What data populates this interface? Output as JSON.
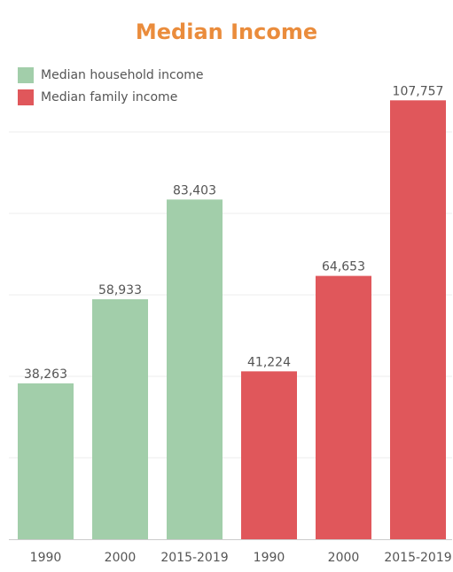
{
  "colors": {
    "title": "#ea8c3c",
    "household": "#a2ceaa",
    "family": "#e0575b",
    "text": "#555555",
    "grid": "#eeeeee",
    "baseline": "#cccccc"
  },
  "chart_data": {
    "type": "bar",
    "title": "Median Income",
    "xlabel": "",
    "ylabel": "",
    "ylim": [
      0,
      120000
    ],
    "grid": true,
    "legend": "top-left",
    "categories": [
      "1990",
      "2000",
      "2015-2019",
      "1990",
      "2000",
      "2015-2019"
    ],
    "series": [
      {
        "name": "Median household income",
        "color": "#a2ceaa",
        "x": [
          "1990",
          "2000",
          "2015-2019"
        ],
        "values": [
          38263,
          58933,
          83403
        ]
      },
      {
        "name": "Median family income",
        "color": "#e0575b",
        "x": [
          "1990",
          "2000",
          "2015-2019"
        ],
        "values": [
          41224,
          64653,
          107757
        ]
      }
    ],
    "data_labels": [
      "38,263",
      "58,933",
      "83,403",
      "41,224",
      "64,653",
      "107,757"
    ]
  }
}
